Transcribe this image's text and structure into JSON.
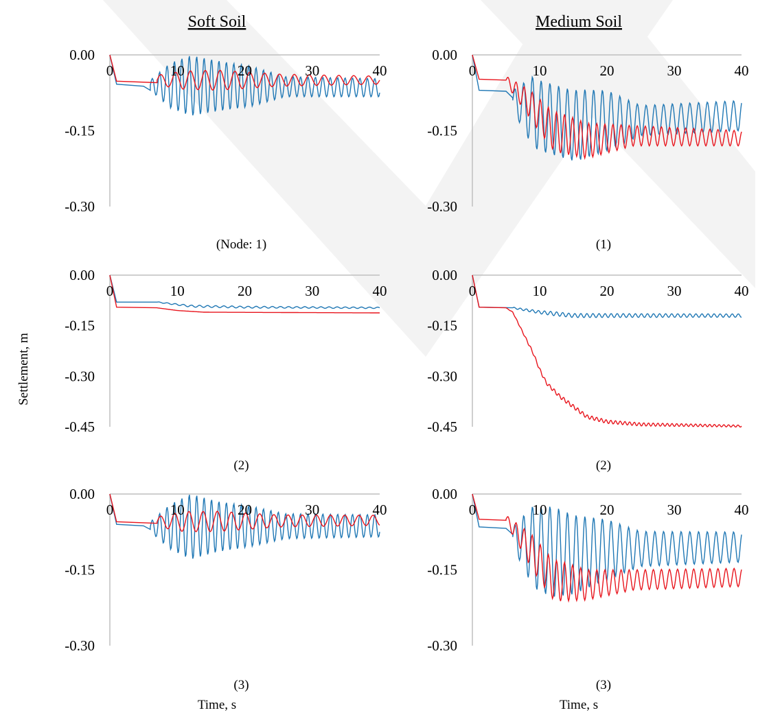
{
  "figure": {
    "col_titles": [
      "Soft Soil",
      "Medium Soil"
    ],
    "ylabel": "Settlement, m",
    "xlabel": "Time, s",
    "colors": {
      "blue": "#1f77b4",
      "red": "#e8141c",
      "axis": "#bfbfbf"
    }
  },
  "chart_data": [
    {
      "id": "soft-1",
      "type": "line",
      "caption": "(Node: 1)",
      "xlim": [
        0,
        40
      ],
      "ylim": [
        -0.3,
        0.0
      ],
      "xticks": [
        0,
        10,
        20,
        30,
        40
      ],
      "yticks": [
        "0.00",
        "-0.15",
        "-0.30"
      ],
      "series": [
        {
          "color": "blue",
          "start": [
            [
              0,
              0
            ],
            [
              1,
              -0.058
            ],
            [
              5,
              -0.062
            ],
            [
              6,
              -0.07
            ]
          ],
          "wave": {
            "from": 6,
            "to": 40,
            "period": 1.1,
            "base": [
              [
                6,
                -0.06
              ],
              [
                40,
                -0.065
              ]
            ],
            "amp": [
              [
                6,
                0.01
              ],
              [
                9,
                0.045
              ],
              [
                12,
                0.06
              ],
              [
                16,
                0.05
              ],
              [
                21,
                0.04
              ],
              [
                26,
                0.02
              ],
              [
                40,
                0.018
              ]
            ]
          }
        },
        {
          "color": "red",
          "start": [
            [
              0,
              0
            ],
            [
              1,
              -0.052
            ],
            [
              7,
              -0.055
            ]
          ],
          "wave": {
            "from": 7,
            "to": 40,
            "period": 2.2,
            "base": [
              [
                7,
                -0.05
              ],
              [
                40,
                -0.05
              ]
            ],
            "amp": [
              [
                7,
                0.01
              ],
              [
                11,
                0.018
              ],
              [
                16,
                0.02
              ],
              [
                25,
                0.012
              ],
              [
                40,
                0.008
              ]
            ]
          }
        }
      ]
    },
    {
      "id": "medium-1",
      "type": "line",
      "caption": "(1)",
      "xlim": [
        0,
        40
      ],
      "ylim": [
        -0.3,
        0.0
      ],
      "xticks": [
        0,
        10,
        20,
        30,
        40
      ],
      "yticks": [
        "0.00",
        "-0.15",
        "-0.30"
      ],
      "series": [
        {
          "color": "blue",
          "start": [
            [
              0,
              0
            ],
            [
              1,
              -0.07
            ],
            [
              5,
              -0.072
            ],
            [
              6,
              -0.085
            ]
          ],
          "wave": {
            "from": 6,
            "to": 40,
            "period": 1.3,
            "base": [
              [
                6,
                -0.09
              ],
              [
                10,
                -0.12
              ],
              [
                15,
                -0.14
              ],
              [
                20,
                -0.13
              ],
              [
                25,
                -0.13
              ],
              [
                40,
                -0.12
              ]
            ],
            "amp": [
              [
                6,
                0.02
              ],
              [
                9,
                0.07
              ],
              [
                12,
                0.07
              ],
              [
                16,
                0.07
              ],
              [
                20,
                0.06
              ],
              [
                25,
                0.03
              ],
              [
                40,
                0.03
              ]
            ]
          }
        },
        {
          "color": "red",
          "start": [
            [
              0,
              0
            ],
            [
              1,
              -0.048
            ],
            [
              5,
              -0.05
            ]
          ],
          "wave": {
            "from": 5,
            "to": 40,
            "period": 1.2,
            "base": [
              [
                5,
                -0.05
              ],
              [
                8,
                -0.09
              ],
              [
                12,
                -0.15
              ],
              [
                17,
                -0.17
              ],
              [
                24,
                -0.16
              ],
              [
                40,
                -0.165
              ]
            ],
            "amp": [
              [
                5,
                0.008
              ],
              [
                9,
                0.03
              ],
              [
                13,
                0.04
              ],
              [
                17,
                0.035
              ],
              [
                24,
                0.02
              ],
              [
                40,
                0.015
              ]
            ]
          }
        }
      ]
    },
    {
      "id": "soft-2",
      "type": "line",
      "caption": "(2)",
      "xlim": [
        0,
        40
      ],
      "ylim": [
        -0.45,
        0.0
      ],
      "xticks": [
        0,
        10,
        20,
        30,
        40
      ],
      "yticks": [
        "0.00",
        "-0.15",
        "-0.30",
        "-0.45"
      ],
      "series": [
        {
          "color": "blue",
          "start": [
            [
              0,
              0
            ],
            [
              1,
              -0.08
            ],
            [
              7,
              -0.08
            ]
          ],
          "wave": {
            "from": 7,
            "to": 40,
            "period": 1.2,
            "base": [
              [
                7,
                -0.08
              ],
              [
                12,
                -0.092
              ],
              [
                20,
                -0.095
              ],
              [
                40,
                -0.097
              ]
            ],
            "amp": [
              [
                7,
                0.001
              ],
              [
                12,
                0.003
              ],
              [
                40,
                0.002
              ]
            ]
          }
        },
        {
          "color": "red",
          "start": [
            [
              0,
              0
            ],
            [
              1,
              -0.095
            ],
            [
              7,
              -0.097
            ]
          ],
          "wave": {
            "from": 7,
            "to": 40,
            "period": 2,
            "base": [
              [
                7,
                -0.097
              ],
              [
                10,
                -0.105
              ],
              [
                14,
                -0.11
              ],
              [
                40,
                -0.112
              ]
            ],
            "amp": [
              [
                7,
                0.0
              ],
              [
                40,
                0.0
              ]
            ]
          }
        }
      ]
    },
    {
      "id": "medium-2",
      "type": "line",
      "caption": "(2)",
      "xlim": [
        0,
        40
      ],
      "ylim": [
        -0.45,
        0.0
      ],
      "xticks": [
        0,
        10,
        20,
        30,
        40
      ],
      "yticks": [
        "0.00",
        "-0.15",
        "-0.30",
        "-0.45"
      ],
      "series": [
        {
          "color": "blue",
          "start": [
            [
              0,
              0
            ],
            [
              1,
              -0.095
            ],
            [
              6,
              -0.097
            ]
          ],
          "wave": {
            "from": 6,
            "to": 40,
            "period": 0.9,
            "base": [
              [
                6,
                -0.097
              ],
              [
                10,
                -0.11
              ],
              [
                15,
                -0.12
              ],
              [
                40,
                -0.12
              ]
            ],
            "amp": [
              [
                6,
                0.002
              ],
              [
                12,
                0.006
              ],
              [
                40,
                0.005
              ]
            ]
          }
        },
        {
          "color": "red",
          "start": [
            [
              0,
              0
            ],
            [
              1,
              -0.095
            ],
            [
              5,
              -0.097
            ]
          ],
          "wave": {
            "from": 5,
            "to": 40,
            "period": 0.7,
            "base": [
              [
                5,
                -0.097
              ],
              [
                6,
                -0.11
              ],
              [
                7.5,
                -0.17
              ],
              [
                9,
                -0.23
              ],
              [
                10,
                -0.28
              ],
              [
                11,
                -0.32
              ],
              [
                13,
                -0.36
              ],
              [
                15,
                -0.39
              ],
              [
                17,
                -0.42
              ],
              [
                20,
                -0.435
              ],
              [
                25,
                -0.443
              ],
              [
                40,
                -0.448
              ]
            ],
            "amp": [
              [
                5,
                0.0
              ],
              [
                9,
                0.004
              ],
              [
                14,
                0.006
              ],
              [
                40,
                0.003
              ]
            ]
          }
        }
      ]
    },
    {
      "id": "soft-3",
      "type": "line",
      "caption": "(3)",
      "xlim": [
        0,
        40
      ],
      "ylim": [
        -0.3,
        0.0
      ],
      "xticks": [
        0,
        10,
        20,
        30,
        40
      ],
      "yticks": [
        "0.00",
        "-0.15",
        "-0.30"
      ],
      "series": [
        {
          "color": "blue",
          "start": [
            [
              0,
              0
            ],
            [
              1,
              -0.06
            ],
            [
              5,
              -0.063
            ],
            [
              6,
              -0.07
            ]
          ],
          "wave": {
            "from": 6,
            "to": 40,
            "period": 1.1,
            "base": [
              [
                6,
                -0.065
              ],
              [
                40,
                -0.063
              ]
            ],
            "amp": [
              [
                6,
                0.01
              ],
              [
                9,
                0.045
              ],
              [
                12,
                0.065
              ],
              [
                16,
                0.05
              ],
              [
                21,
                0.04
              ],
              [
                26,
                0.025
              ],
              [
                40,
                0.022
              ]
            ]
          }
        },
        {
          "color": "red",
          "start": [
            [
              0,
              0
            ],
            [
              1,
              -0.055
            ],
            [
              7,
              -0.058
            ]
          ],
          "wave": {
            "from": 7,
            "to": 40,
            "period": 2.1,
            "base": [
              [
                7,
                -0.055
              ],
              [
                40,
                -0.052
              ]
            ],
            "amp": [
              [
                7,
                0.01
              ],
              [
                11,
                0.02
              ],
              [
                16,
                0.02
              ],
              [
                25,
                0.012
              ],
              [
                40,
                0.01
              ]
            ]
          }
        }
      ]
    },
    {
      "id": "medium-3",
      "type": "line",
      "caption": "(3)",
      "xlim": [
        0,
        40
      ],
      "ylim": [
        -0.3,
        0.0
      ],
      "xticks": [
        0,
        10,
        20,
        30,
        40
      ],
      "yticks": [
        "0.00",
        "-0.15",
        "-0.30"
      ],
      "series": [
        {
          "color": "blue",
          "start": [
            [
              0,
              0
            ],
            [
              1,
              -0.065
            ],
            [
              5,
              -0.068
            ],
            [
              6,
              -0.08
            ]
          ],
          "wave": {
            "from": 6,
            "to": 40,
            "period": 1.3,
            "base": [
              [
                6,
                -0.085
              ],
              [
                10,
                -0.11
              ],
              [
                15,
                -0.12
              ],
              [
                20,
                -0.11
              ],
              [
                40,
                -0.105
              ]
            ],
            "amp": [
              [
                6,
                0.02
              ],
              [
                9,
                0.08
              ],
              [
                12,
                0.09
              ],
              [
                16,
                0.075
              ],
              [
                20,
                0.06
              ],
              [
                25,
                0.035
              ],
              [
                40,
                0.03
              ]
            ]
          }
        },
        {
          "color": "red",
          "start": [
            [
              0,
              0
            ],
            [
              1,
              -0.05
            ],
            [
              5,
              -0.052
            ]
          ],
          "wave": {
            "from": 5,
            "to": 40,
            "period": 1.2,
            "base": [
              [
                5,
                -0.05
              ],
              [
                8,
                -0.1
              ],
              [
                12,
                -0.17
              ],
              [
                17,
                -0.18
              ],
              [
                24,
                -0.17
              ],
              [
                40,
                -0.165
              ]
            ],
            "amp": [
              [
                5,
                0.008
              ],
              [
                9,
                0.035
              ],
              [
                13,
                0.04
              ],
              [
                17,
                0.03
              ],
              [
                24,
                0.02
              ],
              [
                40,
                0.018
              ]
            ]
          }
        }
      ]
    }
  ]
}
